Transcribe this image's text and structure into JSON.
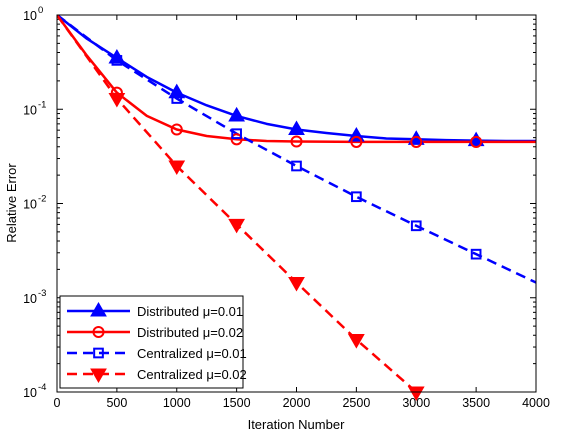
{
  "chart_data": {
    "type": "line",
    "xlabel": "Iteration Number",
    "ylabel": "Relative Error",
    "xlim": [
      0,
      4000
    ],
    "ylim": [
      0.0001,
      1
    ],
    "yscale": "log",
    "grid": false,
    "legend_position": "bottom-left",
    "x_ticks": [
      "0",
      "500",
      "1000",
      "1500",
      "2000",
      "2500",
      "3000",
      "3500",
      "4000"
    ],
    "y_ticks": [
      {
        "base": "10",
        "exp": "-4",
        "value": 0.0001
      },
      {
        "base": "10",
        "exp": "-3",
        "value": 0.001
      },
      {
        "base": "10",
        "exp": "-2",
        "value": 0.01
      },
      {
        "base": "10",
        "exp": "-1",
        "value": 0.1
      },
      {
        "base": "10",
        "exp": "0",
        "value": 1
      }
    ],
    "series": [
      {
        "name": "Distributed μ=0.01",
        "color": "#0000ff",
        "dash": "solid",
        "marker": "triangle-up",
        "x": [
          0,
          250,
          500,
          750,
          1000,
          1250,
          1500,
          1750,
          2000,
          2250,
          2500,
          2750,
          3000,
          3250,
          3500,
          3750,
          4000
        ],
        "y": [
          1.0,
          0.56,
          0.35,
          0.22,
          0.15,
          0.11,
          0.085,
          0.07,
          0.061,
          0.056,
          0.052,
          0.049,
          0.048,
          0.047,
          0.0465,
          0.046,
          0.046
        ],
        "marker_x": [
          500,
          1000,
          1500,
          2000,
          2500,
          3000,
          3500
        ],
        "marker_y": [
          0.35,
          0.15,
          0.085,
          0.061,
          0.052,
          0.048,
          0.0465
        ]
      },
      {
        "name": "Distributed μ=0.02",
        "color": "#ff0000",
        "dash": "solid",
        "marker": "circle",
        "x": [
          0,
          250,
          500,
          750,
          1000,
          1250,
          1500,
          1750,
          2000,
          2500,
          3000,
          3500,
          4000
        ],
        "y": [
          1.0,
          0.37,
          0.15,
          0.085,
          0.061,
          0.052,
          0.048,
          0.046,
          0.0455,
          0.045,
          0.045,
          0.045,
          0.045
        ],
        "marker_x": [
          500,
          1000,
          1500,
          2000,
          2500,
          3000,
          3500
        ],
        "marker_y": [
          0.15,
          0.061,
          0.048,
          0.0455,
          0.045,
          0.045,
          0.045
        ]
      },
      {
        "name": "Centralized μ=0.01",
        "color": "#0000ff",
        "dash": "dashed",
        "marker": "square",
        "x": [
          0,
          500,
          1000,
          1500,
          2000,
          2500,
          3000,
          3500,
          4000
        ],
        "y": [
          1.0,
          0.33,
          0.13,
          0.055,
          0.025,
          0.0118,
          0.0058,
          0.0029,
          0.00145
        ],
        "marker_x": [
          500,
          1000,
          1500,
          2000,
          2500,
          3000,
          3500
        ],
        "marker_y": [
          0.33,
          0.13,
          0.055,
          0.025,
          0.0118,
          0.0058,
          0.0029
        ]
      },
      {
        "name": "Centralized μ=0.02",
        "color": "#ff0000",
        "dash": "dashed",
        "marker": "triangle-down",
        "x": [
          0,
          500,
          1000,
          1500,
          2000,
          2500,
          3000
        ],
        "y": [
          1.0,
          0.13,
          0.025,
          0.006,
          0.00145,
          0.00036,
          0.0001
        ],
        "marker_x": [
          500,
          1000,
          1500,
          2000,
          2500,
          3000
        ],
        "marker_y": [
          0.13,
          0.025,
          0.006,
          0.00145,
          0.00036,
          0.0001
        ]
      }
    ]
  }
}
